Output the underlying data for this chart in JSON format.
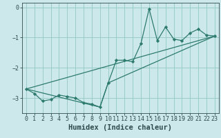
{
  "background_color": "#cce8ea",
  "grid_color": "#99cccc",
  "line_color": "#2d7a6e",
  "marker_color": "#2d7a6e",
  "xlabel": "Humidex (Indice chaleur)",
  "xlim": [
    -0.5,
    23.5
  ],
  "ylim": [
    -3.5,
    0.15
  ],
  "yticks": [
    0,
    -1,
    -2,
    -3
  ],
  "xticks": [
    0,
    1,
    2,
    3,
    4,
    5,
    6,
    7,
    8,
    9,
    10,
    11,
    12,
    13,
    14,
    15,
    16,
    17,
    18,
    19,
    20,
    21,
    22,
    23
  ],
  "series_main": {
    "x": [
      0,
      1,
      2,
      3,
      4,
      5,
      6,
      7,
      8,
      9,
      10,
      11,
      12,
      13,
      14,
      15,
      16,
      17,
      18,
      19,
      20,
      21,
      22,
      23
    ],
    "y": [
      -2.7,
      -2.85,
      -3.1,
      -3.05,
      -2.9,
      -2.95,
      -3.0,
      -3.15,
      -3.2,
      -3.3,
      -2.5,
      -1.75,
      -1.75,
      -1.8,
      -1.2,
      -0.05,
      -1.1,
      -0.65,
      -1.05,
      -1.1,
      -0.85,
      -0.72,
      -0.92,
      -0.95
    ]
  },
  "series_linear": {
    "x": [
      0,
      23
    ],
    "y": [
      -2.7,
      -0.95
    ]
  },
  "series_envelope": {
    "x": [
      0,
      9,
      10,
      23
    ],
    "y": [
      -2.7,
      -3.3,
      -2.5,
      -0.95
    ]
  },
  "font_color": "#2d4a4a",
  "tick_fontsize": 6,
  "label_fontsize": 7.5
}
